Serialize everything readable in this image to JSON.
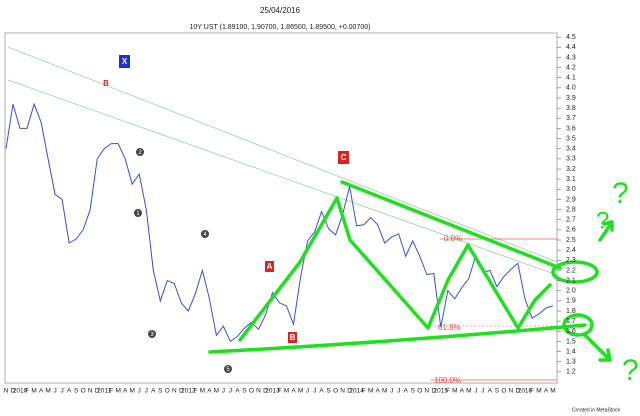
{
  "chart_data": {
    "type": "line",
    "title": "25/04/2016",
    "subtitle": "10Y UST (1.89100, 1.90700, 1.86500, 1.89500, +0.00700)",
    "categories": [
      "N",
      "D",
      "2010",
      "F",
      "M",
      "A",
      "M",
      "J",
      "J",
      "A",
      "S",
      "O",
      "N",
      "D",
      "2011",
      "F",
      "M",
      "A",
      "M",
      "J",
      "J",
      "A",
      "S",
      "O",
      "N",
      "D",
      "2012",
      "F",
      "M",
      "A",
      "M",
      "J",
      "J",
      "A",
      "S",
      "O",
      "N",
      "D",
      "2013",
      "F",
      "M",
      "A",
      "M",
      "J",
      "J",
      "A",
      "S",
      "O",
      "N",
      "D",
      "2014",
      "F",
      "M",
      "A",
      "M",
      "J",
      "J",
      "A",
      "S",
      "O",
      "N",
      "D",
      "2015",
      "F",
      "M",
      "A",
      "M",
      "J",
      "J",
      "A",
      "S",
      "O",
      "N",
      "D",
      "2016",
      "F",
      "M",
      "A",
      "M"
    ],
    "series": [
      {
        "name": "10Y UST",
        "color": "#3a4fd8",
        "values": [
          3.4,
          3.84,
          3.6,
          3.6,
          3.84,
          3.66,
          3.3,
          2.95,
          2.9,
          2.47,
          2.51,
          2.6,
          2.8,
          3.3,
          3.4,
          3.45,
          3.45,
          3.3,
          3.05,
          3.15,
          2.8,
          2.2,
          1.9,
          2.1,
          2.07,
          1.88,
          1.8,
          1.97,
          2.2,
          1.92,
          1.56,
          1.65,
          1.5,
          1.55,
          1.63,
          1.69,
          1.62,
          1.76,
          1.98,
          1.88,
          1.85,
          1.67,
          2.13,
          2.49,
          2.58,
          2.78,
          2.61,
          2.55,
          2.75,
          3.03,
          2.64,
          2.65,
          2.72,
          2.65,
          2.47,
          2.53,
          2.56,
          2.34,
          2.49,
          2.34,
          2.16,
          2.17,
          1.64,
          2.0,
          1.92,
          2.03,
          2.12,
          2.35,
          2.18,
          2.2,
          2.04,
          2.14,
          2.21,
          2.27,
          1.92,
          1.73,
          1.77,
          1.83,
          1.85
        ]
      }
    ],
    "ylim": [
      1.1,
      4.6
    ],
    "yticks": [
      1.2,
      1.3,
      1.4,
      1.5,
      1.6,
      1.7,
      1.8,
      1.9,
      {
        "value": 2,
        "label": "2.0"
      },
      2.1,
      2.2,
      2.3,
      2.4,
      2.5,
      2.6,
      2.7,
      2.8,
      2.9,
      {
        "value": 3,
        "label": "3.0"
      },
      3.1,
      3.2,
      3.3,
      3.4,
      3.5,
      3.6,
      3.7,
      3.8,
      3.9,
      {
        "value": 4,
        "label": "4.0"
      },
      4.1,
      4.2,
      4.3,
      4.4,
      4.5
    ],
    "annotations": [
      "X",
      "B",
      "C",
      "A",
      "B",
      "2",
      "1",
      "3",
      "4",
      "5",
      "0.0%",
      "61.8%",
      "100.0%",
      "?",
      "?",
      "?"
    ],
    "footer": "Created in MetaStock"
  }
}
